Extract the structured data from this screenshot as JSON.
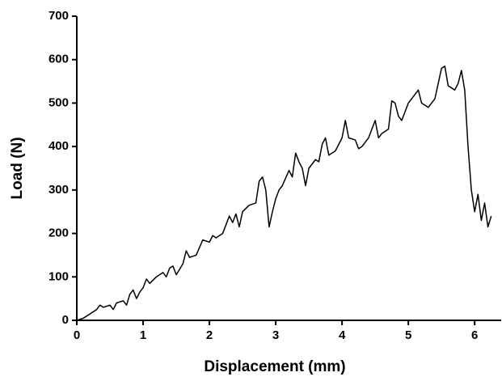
{
  "chart_data": {
    "type": "line",
    "xlabel": "Displacement (mm)",
    "ylabel": "Load (N)",
    "x": [
      0,
      0.1,
      0.2,
      0.3,
      0.35,
      0.4,
      0.5,
      0.55,
      0.6,
      0.7,
      0.75,
      0.8,
      0.85,
      0.9,
      0.95,
      1.0,
      1.05,
      1.1,
      1.2,
      1.3,
      1.35,
      1.4,
      1.45,
      1.5,
      1.6,
      1.65,
      1.7,
      1.8,
      1.9,
      2.0,
      2.05,
      2.1,
      2.2,
      2.25,
      2.3,
      2.35,
      2.4,
      2.45,
      2.5,
      2.6,
      2.7,
      2.75,
      2.8,
      2.85,
      2.9,
      2.95,
      3.0,
      3.05,
      3.1,
      3.2,
      3.25,
      3.3,
      3.35,
      3.4,
      3.45,
      3.5,
      3.6,
      3.65,
      3.7,
      3.75,
      3.8,
      3.9,
      4.0,
      4.05,
      4.1,
      4.2,
      4.25,
      4.3,
      4.4,
      4.5,
      4.55,
      4.6,
      4.7,
      4.75,
      4.8,
      4.85,
      4.9,
      5.0,
      5.1,
      5.15,
      5.2,
      5.3,
      5.4,
      5.5,
      5.55,
      5.6,
      5.7,
      5.75,
      5.8,
      5.85,
      5.9,
      5.95,
      6.0,
      6.05,
      6.1,
      6.15,
      6.2,
      6.25
    ],
    "series": [
      {
        "color": "#000000",
        "values": [
          0,
          5,
          15,
          25,
          35,
          30,
          35,
          25,
          40,
          45,
          35,
          60,
          70,
          50,
          65,
          75,
          95,
          85,
          100,
          110,
          100,
          120,
          125,
          105,
          130,
          160,
          145,
          150,
          185,
          180,
          195,
          190,
          200,
          220,
          240,
          225,
          245,
          215,
          250,
          265,
          270,
          320,
          330,
          300,
          215,
          250,
          280,
          300,
          310,
          345,
          330,
          385,
          365,
          350,
          310,
          350,
          370,
          365,
          405,
          420,
          380,
          390,
          420,
          460,
          420,
          415,
          395,
          400,
          420,
          460,
          420,
          430,
          440,
          505,
          500,
          470,
          460,
          500,
          520,
          530,
          500,
          490,
          510,
          580,
          585,
          540,
          530,
          545,
          575,
          530,
          400,
          300,
          250,
          290,
          230,
          270,
          215,
          240
        ]
      }
    ],
    "xlim": [
      0,
      6.4
    ],
    "ylim": [
      0,
      700
    ],
    "xticks": [
      0,
      1,
      2,
      3,
      4,
      5,
      6
    ],
    "yticks": [
      0,
      100,
      200,
      300,
      400,
      500,
      600,
      700
    ]
  }
}
